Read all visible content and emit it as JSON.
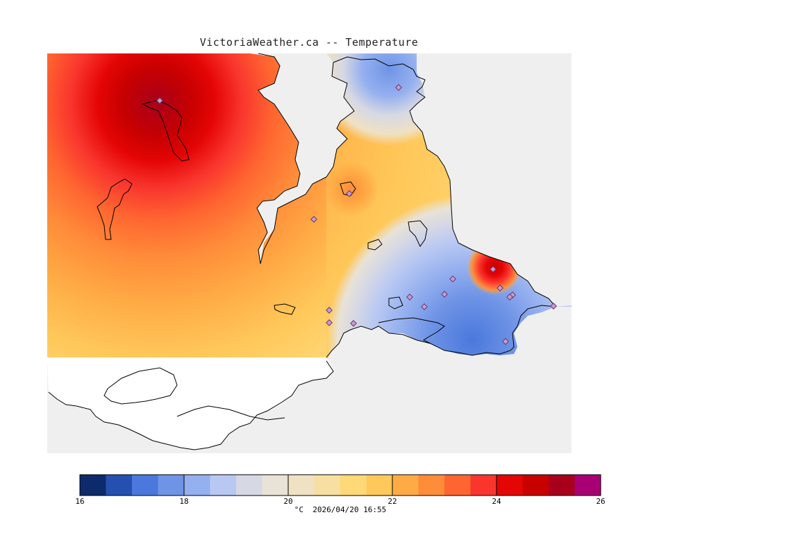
{
  "title": "VictoriaWeather.ca -- Temperature",
  "footer": "°C  2026/04/20 16:55",
  "colors": {
    "water_bg": "#efefef",
    "land_white": "#ffffff",
    "coast": "#000000",
    "station": "#b07ab8"
  },
  "legend": {
    "min": 16,
    "max": 26,
    "tick_labels": [
      "16",
      "18",
      "20",
      "22",
      "24",
      "26"
    ],
    "bins": [
      "#0d2a6b",
      "#2550b0",
      "#4a78dc",
      "#6f94e6",
      "#95b0ef",
      "#b8c8f3",
      "#d6d8e4",
      "#e8e2d7",
      "#efe1c2",
      "#f7dea1",
      "#ffd878",
      "#ffc85a",
      "#ffab45",
      "#ff8c3a",
      "#ff6530",
      "#f9352e",
      "#e40505",
      "#c80000",
      "#a8001c",
      "#a80074"
    ]
  }
}
